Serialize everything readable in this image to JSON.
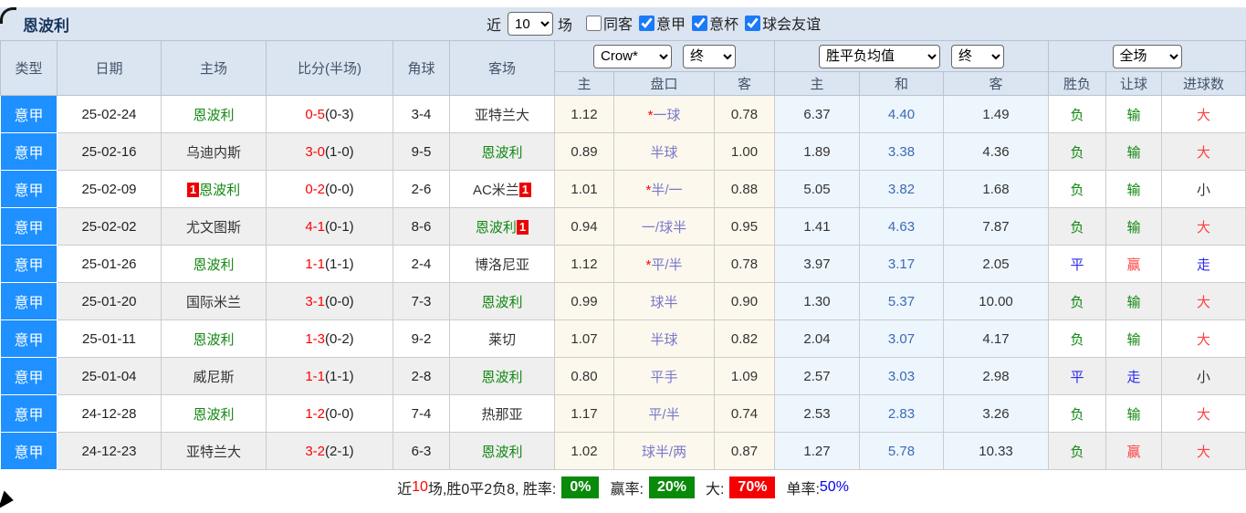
{
  "title": "恩波利",
  "symbols": {
    "star": "*"
  },
  "toolbar": {
    "near_label": "近",
    "near_value": "10",
    "matches_label": "场",
    "filters": [
      {
        "label": "同客",
        "checked": false
      },
      {
        "label": "意甲",
        "checked": true
      },
      {
        "label": "意杯",
        "checked": true
      },
      {
        "label": "球会友谊",
        "checked": true
      }
    ]
  },
  "header": {
    "type": "类型",
    "date": "日期",
    "home": "主场",
    "score": "比分(半场)",
    "corners": "角球",
    "away": "客场",
    "odds_source_select": "Crow*",
    "odds_time_select": "终",
    "avg_select": "胜平负均值",
    "avg_time_select": "终",
    "scope_select": "全场",
    "sub": {
      "home": "主",
      "handicap": "盘口",
      "away": "客",
      "avg_home": "主",
      "avg_draw": "和",
      "avg_away": "客",
      "result": "胜负",
      "let_ball": "让球",
      "goals": "进球数"
    }
  },
  "rows": [
    {
      "league": "意甲",
      "date": "25-02-24",
      "home_text": "恩波利",
      "home_green": true,
      "home_badge": "",
      "home_badge_pos": "",
      "score": "0-5",
      "half": "(0-3)",
      "corners": "3-4",
      "away_text": "亚特兰大",
      "away_green": false,
      "away_badge": "",
      "away_badge_pos": "",
      "odds_home": "1.12",
      "handicap_star": true,
      "handicap": "一球",
      "odds_away": "0.78",
      "avg_home": "6.37",
      "avg_draw": "4.40",
      "avg_away": "1.49",
      "result_text": "负",
      "result_color": "green",
      "let_text": "输",
      "let_color": "green",
      "goals_text": "大",
      "goals_color": "red"
    },
    {
      "league": "意甲",
      "date": "25-02-16",
      "home_text": "乌迪内斯",
      "home_green": false,
      "home_badge": "",
      "home_badge_pos": "",
      "score": "3-0",
      "half": "(1-0)",
      "corners": "9-5",
      "away_text": "恩波利",
      "away_green": true,
      "away_badge": "",
      "away_badge_pos": "",
      "odds_home": "0.89",
      "handicap_star": false,
      "handicap": "半球",
      "odds_away": "1.00",
      "avg_home": "1.89",
      "avg_draw": "3.38",
      "avg_away": "4.36",
      "result_text": "负",
      "result_color": "green",
      "let_text": "输",
      "let_color": "green",
      "goals_text": "大",
      "goals_color": "red"
    },
    {
      "league": "意甲",
      "date": "25-02-09",
      "home_text": "恩波利",
      "home_green": true,
      "home_badge": "1",
      "home_badge_pos": "before",
      "score": "0-2",
      "half": "(0-0)",
      "corners": "2-6",
      "away_text": "AC米兰",
      "away_green": false,
      "away_badge": "1",
      "away_badge_pos": "after",
      "odds_home": "1.01",
      "handicap_star": true,
      "handicap": "半/一",
      "odds_away": "0.88",
      "avg_home": "5.05",
      "avg_draw": "3.82",
      "avg_away": "1.68",
      "result_text": "负",
      "result_color": "green",
      "let_text": "输",
      "let_color": "green",
      "goals_text": "小",
      "goals_color": "black"
    },
    {
      "league": "意甲",
      "date": "25-02-02",
      "home_text": "尤文图斯",
      "home_green": false,
      "home_badge": "",
      "home_badge_pos": "",
      "score": "4-1",
      "half": "(0-1)",
      "corners": "8-6",
      "away_text": "恩波利",
      "away_green": true,
      "away_badge": "1",
      "away_badge_pos": "after",
      "odds_home": "0.94",
      "handicap_star": false,
      "handicap": "一/球半",
      "odds_away": "0.95",
      "avg_home": "1.41",
      "avg_draw": "4.63",
      "avg_away": "7.87",
      "result_text": "负",
      "result_color": "green",
      "let_text": "输",
      "let_color": "green",
      "goals_text": "大",
      "goals_color": "red"
    },
    {
      "league": "意甲",
      "date": "25-01-26",
      "home_text": "恩波利",
      "home_green": true,
      "home_badge": "",
      "home_badge_pos": "",
      "score": "1-1",
      "half": "(1-1)",
      "corners": "2-4",
      "away_text": "博洛尼亚",
      "away_green": false,
      "away_badge": "",
      "away_badge_pos": "",
      "odds_home": "1.12",
      "handicap_star": true,
      "handicap": "平/半",
      "odds_away": "0.78",
      "avg_home": "3.97",
      "avg_draw": "3.17",
      "avg_away": "2.05",
      "result_text": "平",
      "result_color": "blue",
      "let_text": "赢",
      "let_color": "red",
      "goals_text": "走",
      "goals_color": "blue"
    },
    {
      "league": "意甲",
      "date": "25-01-20",
      "home_text": "国际米兰",
      "home_green": false,
      "home_badge": "",
      "home_badge_pos": "",
      "score": "3-1",
      "half": "(0-0)",
      "corners": "7-3",
      "away_text": "恩波利",
      "away_green": true,
      "away_badge": "",
      "away_badge_pos": "",
      "odds_home": "0.99",
      "handicap_star": false,
      "handicap": "球半",
      "odds_away": "0.90",
      "avg_home": "1.30",
      "avg_draw": "5.37",
      "avg_away": "10.00",
      "result_text": "负",
      "result_color": "green",
      "let_text": "输",
      "let_color": "green",
      "goals_text": "大",
      "goals_color": "red"
    },
    {
      "league": "意甲",
      "date": "25-01-11",
      "home_text": "恩波利",
      "home_green": true,
      "home_badge": "",
      "home_badge_pos": "",
      "score": "1-3",
      "half": "(0-2)",
      "corners": "9-2",
      "away_text": "莱切",
      "away_green": false,
      "away_badge": "",
      "away_badge_pos": "",
      "odds_home": "1.07",
      "handicap_star": false,
      "handicap": "半球",
      "odds_away": "0.82",
      "avg_home": "2.04",
      "avg_draw": "3.07",
      "avg_away": "4.17",
      "result_text": "负",
      "result_color": "green",
      "let_text": "输",
      "let_color": "green",
      "goals_text": "大",
      "goals_color": "red"
    },
    {
      "league": "意甲",
      "date": "25-01-04",
      "home_text": "威尼斯",
      "home_green": false,
      "home_badge": "",
      "home_badge_pos": "",
      "score": "1-1",
      "half": "(1-1)",
      "corners": "2-8",
      "away_text": "恩波利",
      "away_green": true,
      "away_badge": "",
      "away_badge_pos": "",
      "odds_home": "0.80",
      "handicap_star": false,
      "handicap": "平手",
      "odds_away": "1.09",
      "avg_home": "2.57",
      "avg_draw": "3.03",
      "avg_away": "2.98",
      "result_text": "平",
      "result_color": "blue",
      "let_text": "走",
      "let_color": "blue",
      "goals_text": "小",
      "goals_color": "black"
    },
    {
      "league": "意甲",
      "date": "24-12-28",
      "home_text": "恩波利",
      "home_green": true,
      "home_badge": "",
      "home_badge_pos": "",
      "score": "1-2",
      "half": "(0-0)",
      "corners": "7-4",
      "away_text": "热那亚",
      "away_green": false,
      "away_badge": "",
      "away_badge_pos": "",
      "odds_home": "1.17",
      "handicap_star": false,
      "handicap": "平/半",
      "odds_away": "0.74",
      "avg_home": "2.53",
      "avg_draw": "2.83",
      "avg_away": "3.26",
      "result_text": "负",
      "result_color": "green",
      "let_text": "输",
      "let_color": "green",
      "goals_text": "大",
      "goals_color": "red"
    },
    {
      "league": "意甲",
      "date": "24-12-23",
      "home_text": "亚特兰大",
      "home_green": false,
      "home_badge": "",
      "home_badge_pos": "",
      "score": "3-2",
      "half": "(2-1)",
      "corners": "6-3",
      "away_text": "恩波利",
      "away_green": true,
      "away_badge": "",
      "away_badge_pos": "",
      "odds_home": "1.02",
      "handicap_star": false,
      "handicap": "球半/两",
      "odds_away": "0.87",
      "avg_home": "1.27",
      "avg_draw": "5.78",
      "avg_away": "10.33",
      "result_text": "负",
      "result_color": "green",
      "let_text": "赢",
      "let_color": "red",
      "goals_text": "大",
      "goals_color": "red"
    }
  ],
  "footer": {
    "prefix": "近",
    "count": "10",
    "summary": "场,胜0平2负8, 胜率:",
    "win_rate": "0%",
    "win_label": "赢率:",
    "win_value": "20%",
    "big_label": "大:",
    "big_value": "70%",
    "single_label": "单率:",
    "single_value": "50%"
  },
  "colors": {
    "league_badge_blue": "#1e90ff",
    "header_bg": "#dbe5f1",
    "title_text": "#17365d",
    "empoli_green": "#118811",
    "score_red": "#ff0000",
    "handicap_purple": "#7878c8",
    "avg_draw_blue": "#3a6ab8",
    "result_blue": "#2a2af0",
    "result_red": "#ff4040",
    "odds_bg_cream": "#fdf8ee",
    "avg_bg_blue": "#eef6fd",
    "stripe_gray": "#efefef",
    "footer_green": "#0a8a0a",
    "footer_red": "#f50000",
    "red_card_badge": "#ee0000"
  }
}
